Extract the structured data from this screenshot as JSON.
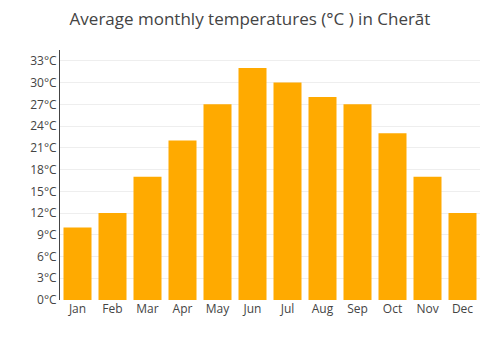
{
  "chart_data": {
    "type": "bar",
    "title": "Average monthly temperatures (°C ) in Cherāt",
    "categories": [
      "Jan",
      "Feb",
      "Mar",
      "Apr",
      "May",
      "Jun",
      "Jul",
      "Aug",
      "Sep",
      "Oct",
      "Nov",
      "Dec"
    ],
    "values": [
      10,
      12,
      17,
      22,
      27,
      32,
      30,
      28,
      27,
      23,
      17,
      12
    ],
    "color": "#FFAA00",
    "ylim": [
      0,
      34.5
    ],
    "yticks": [
      {
        "value": 0,
        "label": "0°C"
      },
      {
        "value": 3,
        "label": "3°C"
      },
      {
        "value": 6,
        "label": "6°C"
      },
      {
        "value": 9,
        "label": "9°C"
      },
      {
        "value": 12,
        "label": "12°C"
      },
      {
        "value": 15,
        "label": "15°C"
      },
      {
        "value": 18,
        "label": "18°C"
      },
      {
        "value": 21,
        "label": "21°C"
      },
      {
        "value": 24,
        "label": "24°C"
      },
      {
        "value": 27,
        "label": "27°C"
      },
      {
        "value": 30,
        "label": "30°C"
      },
      {
        "value": 33,
        "label": "33°C"
      }
    ],
    "grid": true
  }
}
